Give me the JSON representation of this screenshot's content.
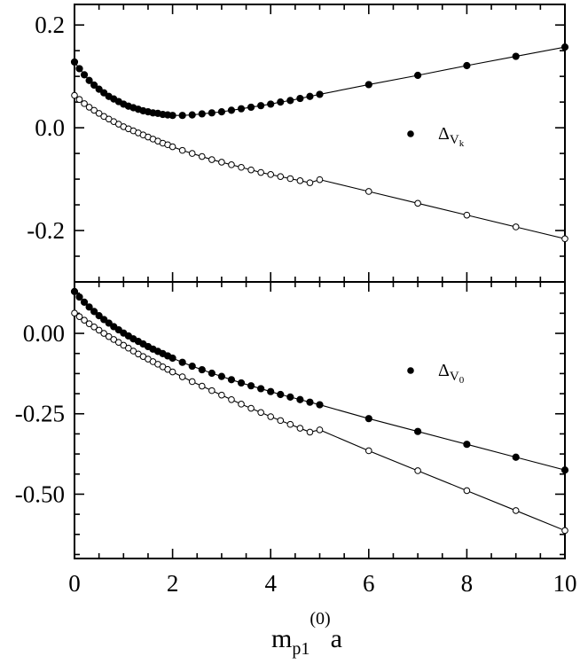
{
  "chart_data": [
    {
      "type": "scatter",
      "panel": "top",
      "xlim": [
        0,
        10
      ],
      "ylim": [
        -0.3,
        0.24
      ],
      "yticks": [
        0.2,
        0.0,
        -0.2
      ],
      "ytick_labels": [
        "0.2",
        "0.0",
        "-0.2"
      ],
      "grid": false,
      "legend": {
        "placement": "center-right",
        "symbol": "Δ",
        "subscript_main": "V",
        "subscript_sub": "k"
      },
      "series": [
        {
          "marker": "filled-circle",
          "x": [
            0,
            0.1,
            0.2,
            0.3,
            0.4,
            0.5,
            0.6,
            0.7,
            0.8,
            0.9,
            1.0,
            1.1,
            1.2,
            1.3,
            1.4,
            1.5,
            1.6,
            1.7,
            1.8,
            1.9,
            2.0,
            2.2,
            2.4,
            2.6,
            2.8,
            3.0,
            3.2,
            3.4,
            3.6,
            3.8,
            4.0,
            4.2,
            4.4,
            4.6,
            4.8,
            5.0,
            6,
            7,
            8,
            9,
            10
          ],
          "y": [
            0.128,
            0.115,
            0.103,
            0.092,
            0.083,
            0.075,
            0.068,
            0.061,
            0.056,
            0.051,
            0.046,
            0.042,
            0.039,
            0.036,
            0.033,
            0.031,
            0.029,
            0.028,
            0.026,
            0.025,
            0.024,
            0.024,
            0.025,
            0.027,
            0.029,
            0.031,
            0.034,
            0.037,
            0.04,
            0.043,
            0.046,
            0.05,
            0.053,
            0.057,
            0.061,
            0.065,
            0.084,
            0.102,
            0.121,
            0.139,
            0.157
          ]
        },
        {
          "marker": "open-circle",
          "x": [
            0,
            0.1,
            0.2,
            0.3,
            0.4,
            0.5,
            0.6,
            0.7,
            0.8,
            0.9,
            1.0,
            1.1,
            1.2,
            1.3,
            1.4,
            1.5,
            1.6,
            1.7,
            1.8,
            1.9,
            2.0,
            2.2,
            2.4,
            2.6,
            2.8,
            3.0,
            3.2,
            3.4,
            3.6,
            3.8,
            4.0,
            4.2,
            4.4,
            4.6,
            4.8,
            5.0,
            6,
            7,
            8,
            9,
            10
          ],
          "y": [
            0.063,
            0.055,
            0.047,
            0.04,
            0.034,
            0.028,
            0.022,
            0.017,
            0.012,
            0.007,
            0.002,
            -0.002,
            -0.006,
            -0.01,
            -0.014,
            -0.018,
            -0.022,
            -0.026,
            -0.03,
            -0.033,
            -0.037,
            -0.044,
            -0.05,
            -0.056,
            -0.062,
            -0.067,
            -0.072,
            -0.077,
            -0.082,
            -0.087,
            -0.091,
            -0.095,
            -0.099,
            -0.103,
            -0.107,
            -0.101,
            -0.124,
            -0.147,
            -0.17,
            -0.193,
            -0.216
          ]
        }
      ]
    },
    {
      "type": "scatter",
      "panel": "bottom",
      "xlim": [
        0,
        10
      ],
      "xlabel_main": "m",
      "xlabel_sub": "p1",
      "xlabel_sup": "(0)",
      "xlabel_tail": "a",
      "xticks": [
        0,
        2,
        4,
        6,
        8,
        10
      ],
      "xtick_labels": [
        "0",
        "2",
        "4",
        "6",
        "8",
        "10"
      ],
      "ylim": [
        -0.7,
        0.16
      ],
      "yticks": [
        0.0,
        -0.25,
        -0.5
      ],
      "ytick_labels": [
        "0.00",
        "-0.25",
        "-0.50"
      ],
      "grid": false,
      "legend": {
        "placement": "center-right",
        "symbol": "Δ",
        "subscript_main": "V",
        "subscript_sub": "0"
      },
      "series": [
        {
          "marker": "filled-circle",
          "x": [
            0,
            0.1,
            0.2,
            0.3,
            0.4,
            0.5,
            0.6,
            0.7,
            0.8,
            0.9,
            1.0,
            1.1,
            1.2,
            1.3,
            1.4,
            1.5,
            1.6,
            1.7,
            1.8,
            1.9,
            2.0,
            2.2,
            2.4,
            2.6,
            2.8,
            3.0,
            3.2,
            3.4,
            3.6,
            3.8,
            4.0,
            4.2,
            4.4,
            4.6,
            4.8,
            5.0,
            6,
            7,
            8,
            9,
            10
          ],
          "y": [
            0.13,
            0.113,
            0.097,
            0.082,
            0.068,
            0.055,
            0.043,
            0.032,
            0.021,
            0.011,
            0.001,
            -0.008,
            -0.017,
            -0.025,
            -0.033,
            -0.041,
            -0.049,
            -0.056,
            -0.063,
            -0.07,
            -0.077,
            -0.09,
            -0.102,
            -0.113,
            -0.124,
            -0.134,
            -0.144,
            -0.154,
            -0.163,
            -0.172,
            -0.181,
            -0.19,
            -0.198,
            -0.206,
            -0.214,
            -0.222,
            -0.265,
            -0.305,
            -0.345,
            -0.385,
            -0.425
          ]
        },
        {
          "marker": "open-circle",
          "x": [
            0,
            0.1,
            0.2,
            0.3,
            0.4,
            0.5,
            0.6,
            0.7,
            0.8,
            0.9,
            1.0,
            1.1,
            1.2,
            1.3,
            1.4,
            1.5,
            1.6,
            1.7,
            1.8,
            1.9,
            2.0,
            2.2,
            2.4,
            2.6,
            2.8,
            3.0,
            3.2,
            3.4,
            3.6,
            3.8,
            4.0,
            4.2,
            4.4,
            4.6,
            4.8,
            5.0,
            6,
            7,
            8,
            9,
            10
          ],
          "y": [
            0.063,
            0.052,
            0.041,
            0.03,
            0.02,
            0.01,
            0.0,
            -0.01,
            -0.019,
            -0.028,
            -0.037,
            -0.046,
            -0.055,
            -0.064,
            -0.072,
            -0.08,
            -0.088,
            -0.096,
            -0.104,
            -0.112,
            -0.12,
            -0.135,
            -0.15,
            -0.164,
            -0.178,
            -0.192,
            -0.206,
            -0.22,
            -0.233,
            -0.246,
            -0.259,
            -0.271,
            -0.283,
            -0.295,
            -0.307,
            -0.3,
            -0.365,
            -0.427,
            -0.489,
            -0.551,
            -0.613
          ]
        }
      ]
    }
  ]
}
